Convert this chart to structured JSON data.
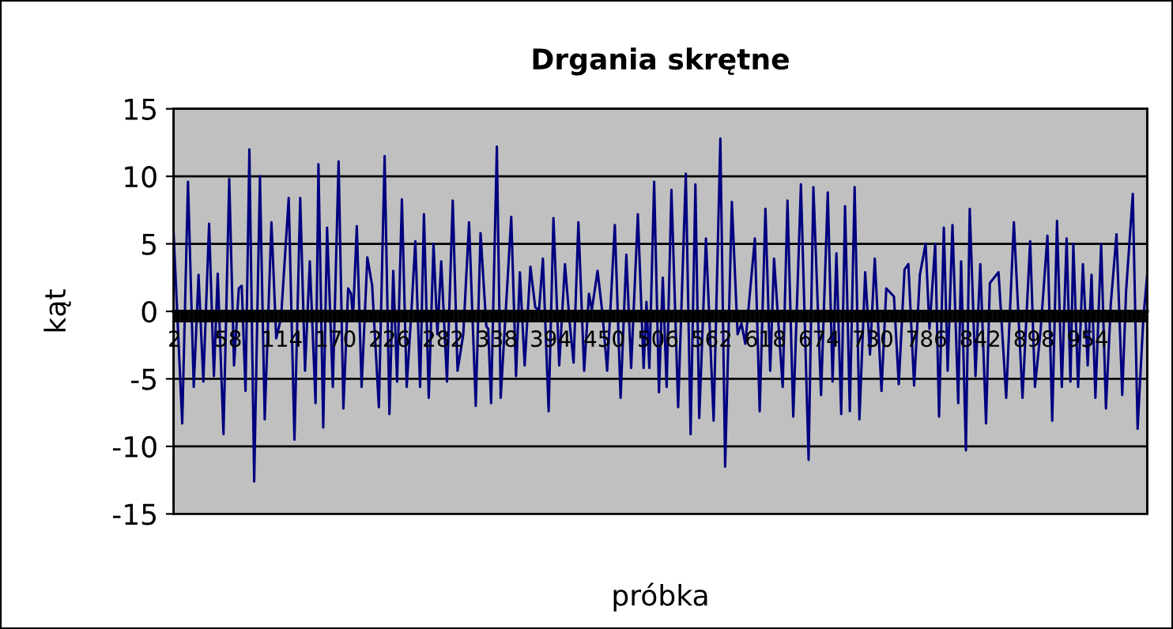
{
  "chart_data": {
    "type": "line",
    "title": "Drgania skrętne",
    "xlabel": "próbka",
    "ylabel": "kąt",
    "x": [
      1,
      10,
      16,
      22,
      27,
      32,
      38,
      43,
      47,
      53,
      59,
      64,
      69,
      72,
      76,
      80,
      85,
      91,
      96,
      103,
      108,
      113,
      121,
      127,
      133,
      138,
      143,
      149,
      152,
      157,
      161,
      167,
      173,
      178,
      183,
      186,
      188,
      192,
      197,
      203,
      208,
      215,
      221,
      226,
      230,
      234,
      239,
      244,
      249,
      253,
      258,
      262,
      267,
      272,
      276,
      280,
      286,
      292,
      297,
      303,
      309,
      316,
      321,
      327,
      329,
      332,
      338,
      342,
      353,
      358,
      362,
      367,
      373,
      378,
      382,
      386,
      392,
      397,
      403,
      409,
      414,
      418,
      423,
      429,
      434,
      437,
      443,
      448,
      453,
      461,
      467,
      473,
      478,
      485,
      491,
      494,
      497,
      502,
      507,
      511,
      515,
      520,
      527,
      535,
      540,
      545,
      549,
      556,
      564,
      571,
      576,
      583,
      589,
      593,
      597,
      607,
      612,
      618,
      623,
      627,
      636,
      641,
      647,
      655,
      663,
      668,
      676,
      683,
      688,
      692,
      697,
      701,
      706,
      711,
      716,
      722,
      727,
      732,
      739,
      744,
      752,
      757,
      763,
      767,
      773,
      779,
      785,
      789,
      795,
      799,
      804,
      808,
      813,
      819,
      822,
      827,
      831,
      837,
      842,
      848,
      852,
      861,
      865,
      869,
      877,
      886,
      894,
      899,
      905,
      912,
      917,
      922,
      927,
      932,
      936,
      939,
      944,
      949,
      954,
      958,
      962,
      968,
      973,
      978,
      984,
      990,
      994,
      1001,
      1006,
      1012,
      1016
    ],
    "series": [
      {
        "color": "#000080",
        "values": [
          5.8,
          -8.3,
          9.6,
          -5.6,
          2.7,
          -5.2,
          6.5,
          -4.8,
          2.8,
          -9.1,
          9.8,
          -4.0,
          1.7,
          1.9,
          -5.9,
          12.0,
          -12.6,
          10.0,
          -8.0,
          6.6,
          -2.0,
          -0.5,
          8.4,
          -9.5,
          8.4,
          -4.4,
          3.7,
          -6.8,
          10.9,
          -8.6,
          6.2,
          -5.6,
          11.1,
          -7.2,
          1.7,
          1.3,
          -0.5,
          6.3,
          -5.6,
          4.0,
          1.9,
          -7.1,
          11.5,
          -7.6,
          3.0,
          -5.2,
          8.3,
          -5.6,
          0.1,
          5.2,
          -5.6,
          7.2,
          -6.4,
          5.0,
          -1.7,
          3.7,
          -5.2,
          8.2,
          -4.4,
          -1.7,
          6.6,
          -7.0,
          5.8,
          -1.1,
          -1.3,
          -6.8,
          12.2,
          -6.4,
          7.0,
          -4.8,
          2.9,
          -4.0,
          3.3,
          0.3,
          0.1,
          3.9,
          -7.4,
          6.9,
          -4.0,
          3.5,
          -0.9,
          -3.8,
          6.6,
          -4.4,
          1.3,
          0.1,
          3.0,
          -0.1,
          -4.4,
          6.4,
          -6.4,
          4.2,
          -4.2,
          7.2,
          -4.2,
          0.7,
          -4.2,
          9.6,
          -6.0,
          2.5,
          -5.6,
          9.0,
          -7.1,
          10.2,
          -9.1,
          9.4,
          -7.9,
          5.4,
          -8.1,
          12.8,
          -11.5,
          8.1,
          -1.7,
          -0.9,
          -2.4,
          5.4,
          -7.4,
          7.6,
          -4.4,
          3.9,
          -5.6,
          8.2,
          -7.8,
          9.4,
          -11.0,
          9.2,
          -6.2,
          8.8,
          -5.2,
          4.3,
          -7.6,
          7.8,
          -7.4,
          9.2,
          -8.0,
          2.9,
          -3.2,
          3.9,
          -5.9,
          1.7,
          1.1,
          -5.4,
          3.1,
          3.5,
          -5.5,
          2.7,
          5.0,
          -1.3,
          5.0,
          -7.8,
          6.2,
          -4.4,
          6.4,
          -6.8,
          3.7,
          -10.3,
          7.6,
          -4.8,
          3.5,
          -8.3,
          2.1,
          2.9,
          -1.7,
          -6.4,
          6.6,
          -6.4,
          5.2,
          -5.6,
          -1.3,
          5.6,
          -8.1,
          6.7,
          -5.6,
          5.4,
          -5.2,
          5.0,
          -5.6,
          3.5,
          -4.0,
          2.7,
          -6.4,
          5.0,
          -7.2,
          0.5,
          5.7,
          -6.2,
          1.5,
          8.7,
          -8.7,
          -0.5,
          2.7
        ]
      }
    ],
    "xlim": [
      1,
      1016
    ],
    "xticks": [
      2,
      58,
      114,
      170,
      226,
      282,
      338,
      394,
      450,
      506,
      562,
      618,
      674,
      730,
      786,
      842,
      898,
      954
    ],
    "ylim": [
      -15,
      15
    ],
    "yticks": [
      -15,
      -10,
      -5,
      0,
      5,
      10,
      15
    ],
    "grid": "y",
    "marker": "none",
    "line_style": "solid"
  }
}
